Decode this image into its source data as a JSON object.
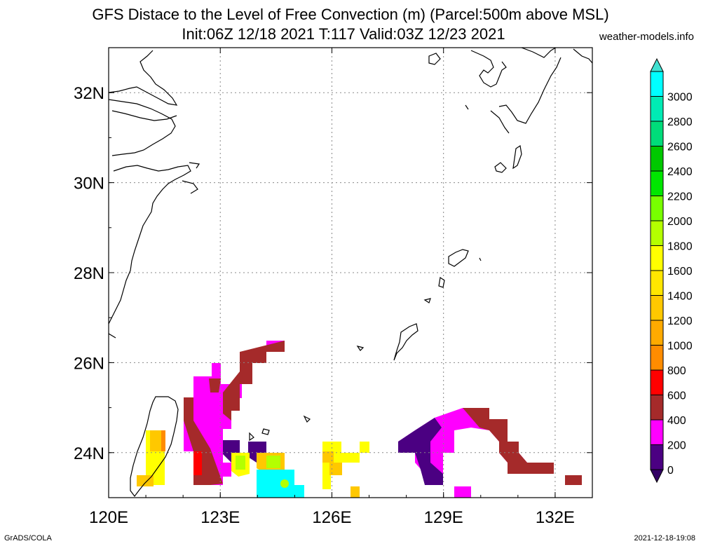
{
  "title_line1": "GFS Distace to the Level of Free Convection (m) (Parcel:500m above MSL)",
  "title_line2": "Init:06Z 12/18 2021 T:117 Valid:03Z 12/23 2021",
  "site": "weather-models.info",
  "footer_left": "GrADS/COLA",
  "footer_right": "2021-12-18-19:08",
  "map": {
    "lon_range": [
      120,
      133
    ],
    "lat_range": [
      23,
      33
    ],
    "x_ticks": [
      {
        "v": 120,
        "label": "120E"
      },
      {
        "v": 123,
        "label": "123E"
      },
      {
        "v": 126,
        "label": "126E"
      },
      {
        "v": 129,
        "label": "129E"
      },
      {
        "v": 132,
        "label": "132E"
      }
    ],
    "y_ticks": [
      {
        "v": 24,
        "label": "24N"
      },
      {
        "v": 26,
        "label": "26N"
      },
      {
        "v": 28,
        "label": "28N"
      },
      {
        "v": 30,
        "label": "30N"
      },
      {
        "v": 32,
        "label": "32N"
      }
    ]
  },
  "colorbar": {
    "levels": [
      0,
      200,
      400,
      600,
      800,
      1000,
      1200,
      1400,
      1600,
      1800,
      2000,
      2200,
      2400,
      2600,
      2800,
      3000
    ],
    "labels": [
      "0",
      "200",
      "400",
      "600",
      "800",
      "1000",
      "1200",
      "1400",
      "1600",
      "1800",
      "2000",
      "2200",
      "2400",
      "2600",
      "2800",
      "3000"
    ],
    "colors": [
      "#4b0082",
      "#ff00ff",
      "#a52a2a",
      "#ff0000",
      "#ff8c00",
      "#ffaa00",
      "#ffc800",
      "#ffe600",
      "#ffff00",
      "#b4ff00",
      "#78ff00",
      "#00e600",
      "#00c800",
      "#00dc7a",
      "#00ebb4",
      "#00ffff"
    ],
    "under_color": "#320064",
    "over_color": "#40e0d0"
  }
}
